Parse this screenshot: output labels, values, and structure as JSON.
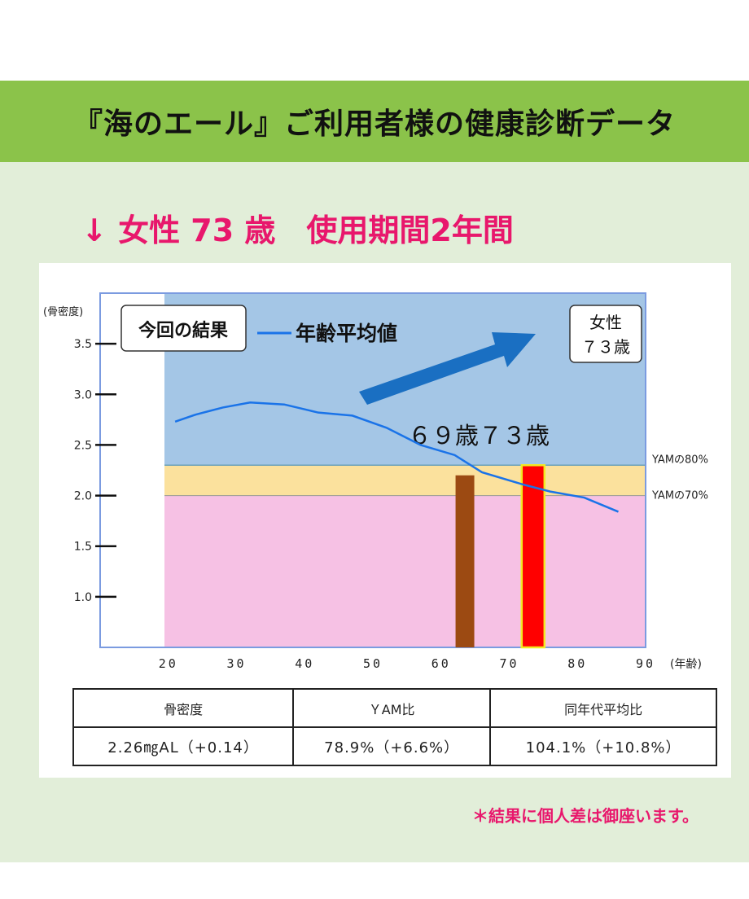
{
  "header": {
    "title": "『海のエール』ご利用者様の健康診断データ"
  },
  "subtitle": "↓ 女性 73 歳　使用期間2年間",
  "chart_data": {
    "type": "line",
    "ylabel": "(骨密度)",
    "xlabel": "(年齢)",
    "xlim": [
      10,
      90
    ],
    "ylim": [
      0.5,
      4.0
    ],
    "x_ticks": [
      "20",
      "30",
      "40",
      "50",
      "60",
      "70",
      "80",
      "90"
    ],
    "y_ticks": [
      "1.0",
      "1.5",
      "2.0",
      "2.5",
      "3.0",
      "3.5"
    ],
    "bands": [
      {
        "label": "YAMの70%",
        "from": 0.5,
        "to": 2.0,
        "color": "#f6c1e4"
      },
      {
        "label": "YAMの80%",
        "from": 2.0,
        "to": 2.3,
        "color": "#fbe19d"
      },
      {
        "label": "",
        "from": 2.3,
        "to": 4.0,
        "color": "#a4c6e6"
      }
    ],
    "series": [
      {
        "name": "年齢平均値",
        "x": [
          21,
          24,
          28,
          32,
          37,
          42,
          47,
          52,
          57,
          62,
          66,
          72,
          76,
          81,
          86
        ],
        "y": [
          2.73,
          2.8,
          2.87,
          2.92,
          2.9,
          2.82,
          2.79,
          2.67,
          2.5,
          2.4,
          2.23,
          2.11,
          2.04,
          1.98,
          1.84
        ]
      }
    ],
    "bars": [
      {
        "label": "69歳",
        "x": 63.5,
        "value": 2.2,
        "color": "#9c4a12",
        "outline": "#9c4a12"
      },
      {
        "label": "73歳",
        "x": 73.5,
        "value": 2.3,
        "color": "#ff0000",
        "outline": "#f2ea23"
      }
    ],
    "bar_label": "６９歳７３歳",
    "result_box": "今回の結果",
    "legend": "年齢平均値",
    "info_box": [
      "女性",
      "７３歳"
    ]
  },
  "table": {
    "headers": [
      "骨密度",
      "ＹAM比",
      "同年代平均比"
    ],
    "values": [
      "2.26㎎AL（+0.14）",
      "78.9%（+6.6%）",
      "104.1%（+10.8%）"
    ]
  },
  "note": "＊結果に個人差は御座います。",
  "colors": {
    "accent": "#e8176c",
    "header": "#8bc34a",
    "panel": "#e2eed9",
    "line": "#1a73e8",
    "arrow": "#1a6fc2"
  }
}
